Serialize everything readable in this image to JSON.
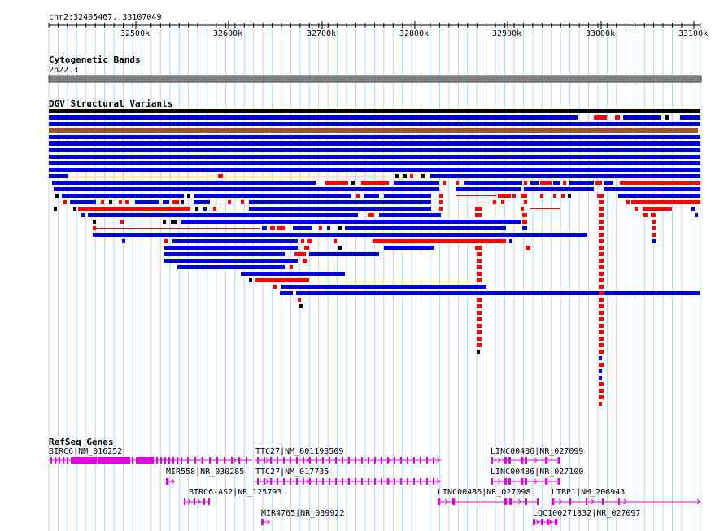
{
  "ruler": {
    "region": "chr2:32405467..33107049",
    "ticks": [
      "32500k",
      "32600k",
      "32700k",
      "32800k",
      "32900k",
      "33000k",
      "33100k"
    ]
  },
  "cytoband": {
    "title": "Cytogenetic Bands",
    "band": "2p22.3"
  },
  "dgv": {
    "title": "DGV Structural Variants"
  },
  "refseq": {
    "title": "RefSeq Genes",
    "genes": [
      {
        "label": "BIRC6|NM_016252"
      },
      {
        "label": "TTC27|NM_001193509"
      },
      {
        "label": "LINC00486|NR_027099"
      },
      {
        "label": "MIR558|NR_030285"
      },
      {
        "label": "TTC27|NM_017735"
      },
      {
        "label": "LINC00486|NR_027100"
      },
      {
        "label": "BIRC6-AS2|NR_125793"
      },
      {
        "label": "LINC00486|NR_027098"
      },
      {
        "label": "LTBP1|NM_206943"
      },
      {
        "label": "MIR4765|NR_039922"
      },
      {
        "label": "LOC100271832|NR_027097"
      }
    ]
  },
  "colors": {
    "gene": "#e000e0",
    "loss": "#ff0000",
    "gain": "#0000d8",
    "both": "#a0522d",
    "grid": "#b0d8f0",
    "band": "#7f7f7f"
  }
}
